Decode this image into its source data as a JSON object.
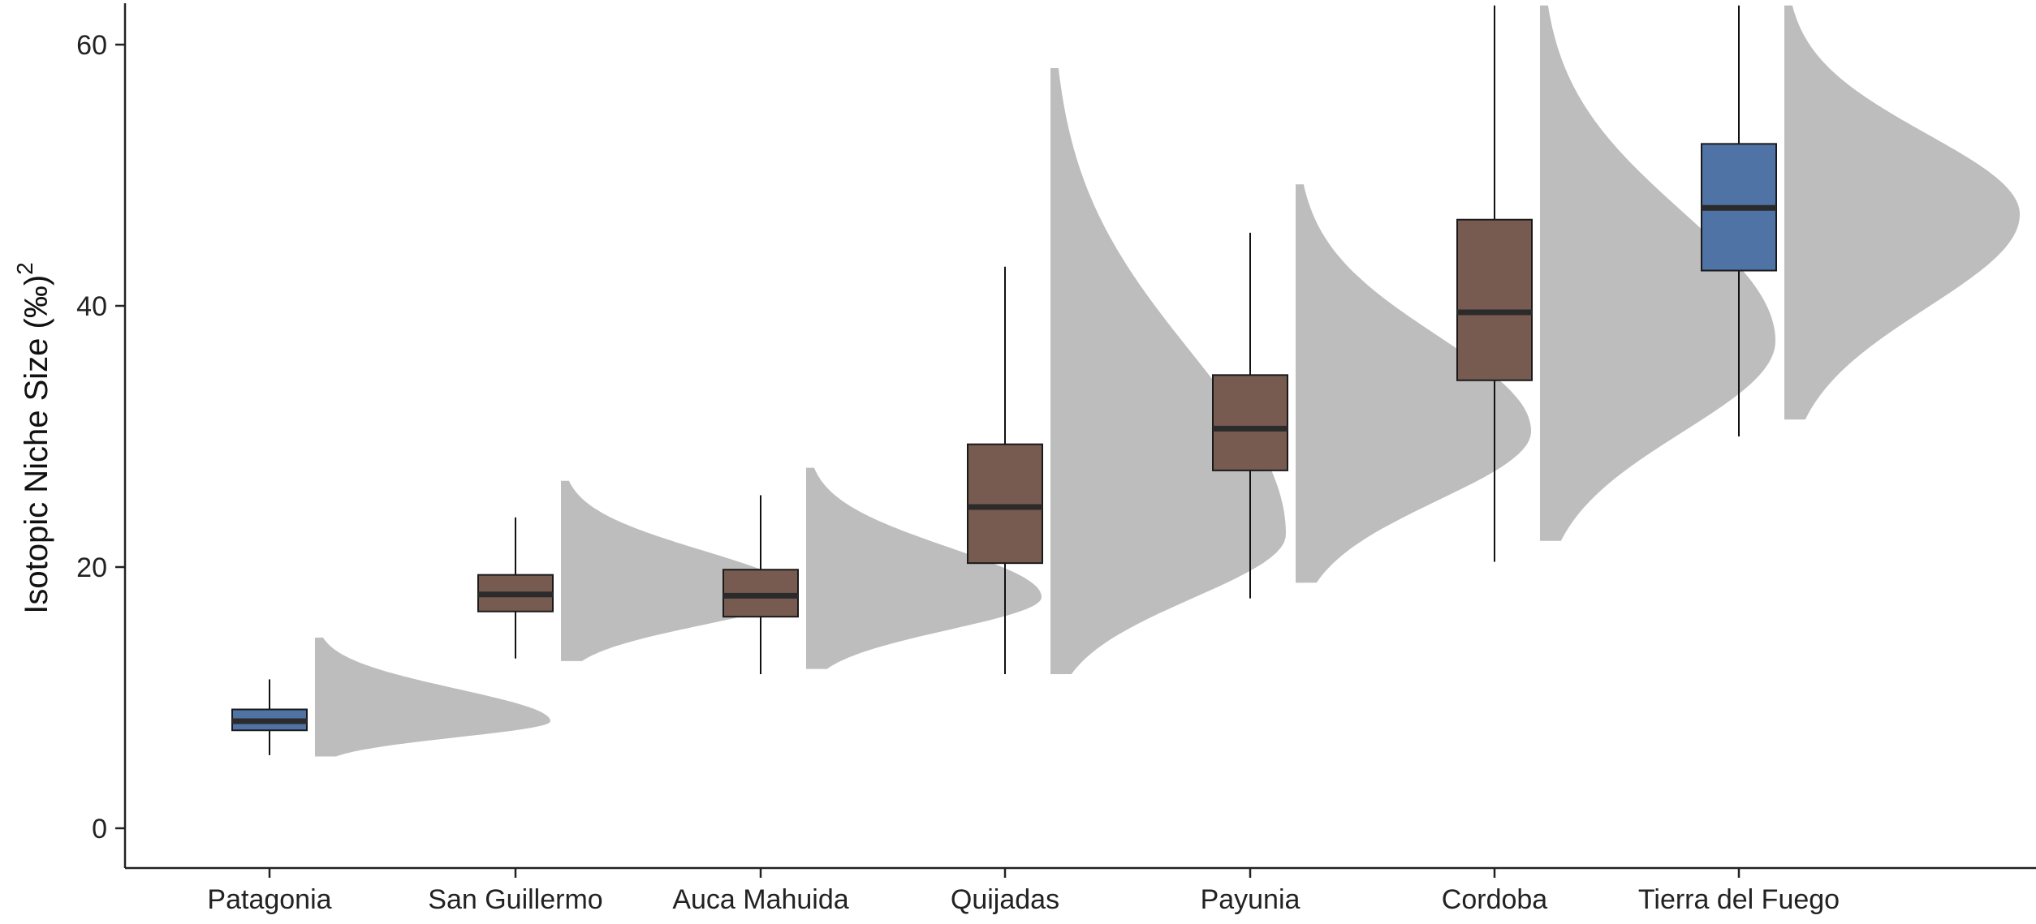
{
  "chart_data": {
    "type": "boxplot",
    "title": "",
    "xlabel": "",
    "ylabel": "Isotopic Niche Size (‰)",
    "ylabel_superscript": "2",
    "ylim": [
      -3,
      63
    ],
    "yticks": [
      0,
      20,
      40,
      60
    ],
    "grid": false,
    "colors": {
      "blue": "#4e73a4",
      "brown": "#775b51",
      "density": "#bdbdbd",
      "median": "#2b2b2b",
      "axis": "#222222"
    },
    "categories": [
      "Patagonia",
      "San Guillermo",
      "Auca Mahuida",
      "Quijadas",
      "Payunia",
      "Cordoba",
      "Tierra del Fuego"
    ],
    "boxes": [
      {
        "category": "Patagonia",
        "min": 5.6,
        "q1": 7.5,
        "median": 8.2,
        "q3": 9.1,
        "max": 11.4,
        "color": "blue"
      },
      {
        "category": "San Guillermo",
        "min": 13.0,
        "q1": 16.6,
        "median": 17.9,
        "q3": 19.4,
        "max": 23.8,
        "color": "brown"
      },
      {
        "category": "Auca Mahuida",
        "min": 11.8,
        "q1": 16.2,
        "median": 17.8,
        "q3": 19.8,
        "max": 25.5,
        "color": "brown"
      },
      {
        "category": "Quijadas",
        "min": 11.8,
        "q1": 20.3,
        "median": 24.6,
        "q3": 29.4,
        "max": 43.0,
        "color": "brown"
      },
      {
        "category": "Payunia",
        "min": 17.6,
        "q1": 27.4,
        "median": 30.6,
        "q3": 34.7,
        "max": 45.6,
        "color": "brown"
      },
      {
        "category": "Cordoba",
        "min": 20.4,
        "q1": 34.3,
        "median": 39.5,
        "q3": 46.6,
        "max": 63.0,
        "color": "brown"
      },
      {
        "category": "Tierra del Fuego",
        "min": 30.0,
        "q1": 42.7,
        "median": 47.5,
        "q3": 52.4,
        "max": 63.0,
        "color": "blue"
      }
    ],
    "distributions": [
      {
        "category": "Patagonia",
        "y_min": 5.5,
        "y_max": 14.6,
        "mode": 8.2
      },
      {
        "category": "San Guillermo",
        "y_min": 12.8,
        "y_max": 26.6,
        "mode": 17.9
      },
      {
        "category": "Auca Mahuida",
        "y_min": 12.2,
        "y_max": 27.6,
        "mode": 17.7
      },
      {
        "category": "Quijadas",
        "y_min": 11.8,
        "y_max": 58.2,
        "mode": 22.5
      },
      {
        "category": "Payunia",
        "y_min": 18.8,
        "y_max": 49.3,
        "mode": 30.4
      },
      {
        "category": "Cordoba",
        "y_min": 22.0,
        "y_max": 63.0,
        "mode": 37.3
      },
      {
        "category": "Tierra del Fuego",
        "y_min": 31.3,
        "y_max": 63.0,
        "mode": 47.0
      }
    ]
  }
}
